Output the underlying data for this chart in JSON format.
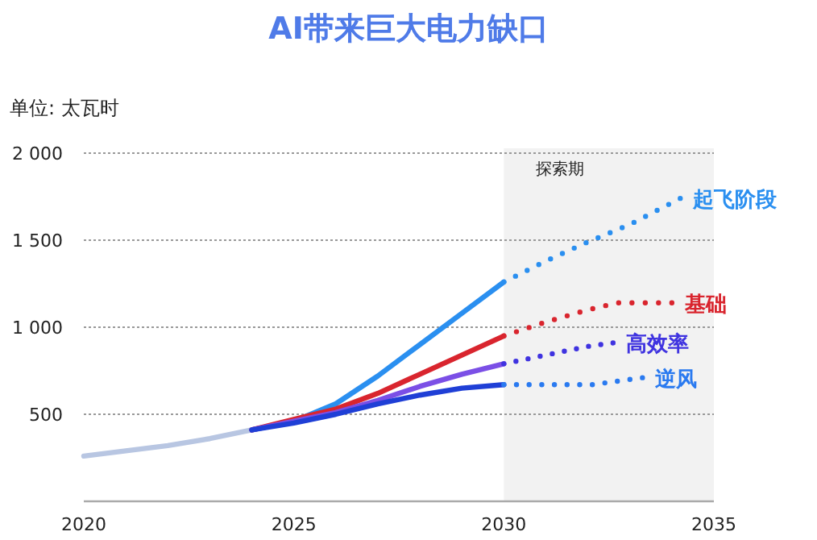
{
  "chart_data": {
    "type": "line",
    "title": "AI带来巨大电力缺口",
    "ylabel": "单位: 太瓦时",
    "xlim": [
      2020,
      2035
    ],
    "xticks": [
      2020,
      2025,
      2030,
      2035
    ],
    "ylim": [
      0,
      2000
    ],
    "yticks": [
      {
        "value": 500,
        "label": "500"
      },
      {
        "value": 1000,
        "label": "1 000"
      },
      {
        "value": 1500,
        "label": "1 500"
      },
      {
        "value": 2000,
        "label": "2 000"
      }
    ],
    "grid": "y",
    "bands": [
      {
        "axis": "x",
        "from": 2030,
        "to": 2035,
        "label": "探索期",
        "color": "#f2f2f2"
      }
    ],
    "series": [
      {
        "color": "#b8c6e2",
        "line_style": "solid",
        "x": [
          2020,
          2021,
          2022,
          2023,
          2024
        ],
        "values": [
          260,
          290,
          320,
          360,
          410
        ]
      },
      {
        "color": "#2a8ff0",
        "line_style": "solid",
        "x": [
          2024,
          2025,
          2026,
          2027,
          2028,
          2029,
          2030
        ],
        "values": [
          410,
          460,
          560,
          720,
          900,
          1080,
          1260
        ]
      },
      {
        "name": "起飞阶段",
        "color": "#2a8ff0",
        "line_style": "dotted",
        "x": [
          2030,
          2031,
          2032,
          2033,
          2034.2
        ],
        "values": [
          1260,
          1380,
          1490,
          1590,
          1740
        ]
      },
      {
        "color": "#d9252e",
        "line_style": "solid",
        "x": [
          2024,
          2025,
          2026,
          2027,
          2028,
          2029,
          2030
        ],
        "values": [
          410,
          470,
          530,
          620,
          730,
          840,
          950
        ]
      },
      {
        "name": "基础",
        "color": "#d9252e",
        "line_style": "dotted",
        "x": [
          2030,
          2031,
          2032,
          2032.7,
          2034
        ],
        "values": [
          950,
          1030,
          1100,
          1140,
          1140
        ]
      },
      {
        "color": "#7b4fe6",
        "line_style": "solid",
        "x": [
          2024,
          2025,
          2026,
          2027,
          2028,
          2029,
          2030
        ],
        "values": [
          410,
          460,
          510,
          580,
          660,
          730,
          790
        ]
      },
      {
        "name": "高效率",
        "color": "#3f33e0",
        "line_style": "dotted",
        "x": [
          2030,
          2031,
          2032,
          2032.6
        ],
        "values": [
          790,
          840,
          890,
          910
        ]
      },
      {
        "color": "#1f3fd6",
        "line_style": "solid",
        "x": [
          2024,
          2025,
          2026,
          2027,
          2028,
          2029,
          2030
        ],
        "values": [
          410,
          450,
          500,
          560,
          610,
          650,
          670
        ]
      },
      {
        "name": "逆风",
        "color": "#2a7af0",
        "line_style": "dotted",
        "x": [
          2030,
          2031,
          2032.1,
          2033.3
        ],
        "values": [
          670,
          670,
          670,
          710
        ]
      }
    ]
  }
}
